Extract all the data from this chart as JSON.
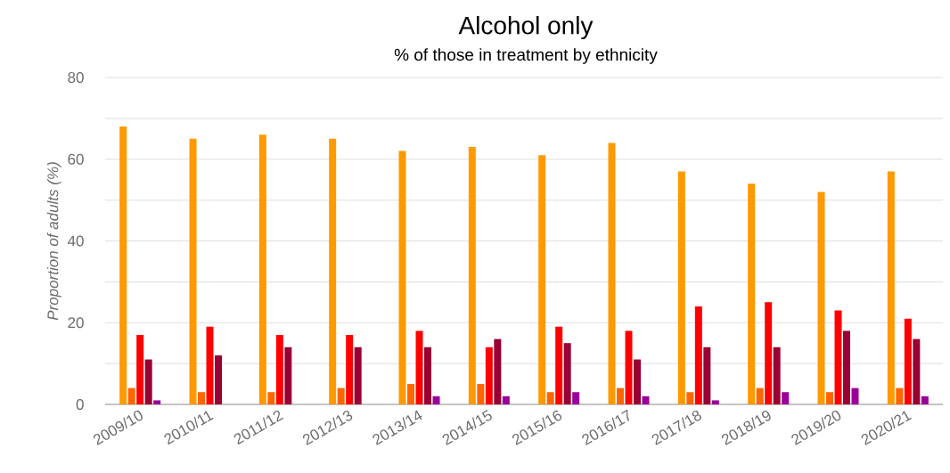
{
  "chart_data": {
    "type": "bar",
    "title": "Alcohol only",
    "subtitle": "% of those in treatment by ethnicity",
    "ylabel": "Proportion of adults (%)",
    "categories": [
      "2009/10",
      "2010/11",
      "2011/12",
      "2012/13",
      "2013/14",
      "2014/15",
      "2015/16",
      "2016/17",
      "2017/18",
      "2018/19",
      "2019/20",
      "2020/21"
    ],
    "series": [
      {
        "color": "#ff9900",
        "values": [
          68,
          65,
          66,
          65,
          62,
          63,
          61,
          64,
          57,
          54,
          52,
          57
        ]
      },
      {
        "color": "#ff6600",
        "values": [
          4,
          3,
          3,
          4,
          5,
          5,
          3,
          4,
          3,
          4,
          3,
          4
        ]
      },
      {
        "color": "#ff0000",
        "values": [
          17,
          19,
          17,
          17,
          18,
          14,
          19,
          18,
          24,
          25,
          23,
          21
        ]
      },
      {
        "color": "#990033",
        "values": [
          11,
          12,
          14,
          14,
          14,
          16,
          15,
          11,
          14,
          14,
          18,
          16
        ]
      },
      {
        "color": "#990099",
        "values": [
          1,
          0,
          0,
          0,
          2,
          2,
          3,
          2,
          1,
          3,
          4,
          2
        ]
      }
    ],
    "ylim": [
      0,
      80
    ],
    "yticks": [
      0,
      {
        "value": 10,
        "label": null
      },
      20,
      {
        "value": 30,
        "label": null
      },
      40,
      {
        "value": 50,
        "label": null
      },
      60,
      {
        "value": 70,
        "label": null
      },
      80
    ],
    "grid": "y"
  }
}
